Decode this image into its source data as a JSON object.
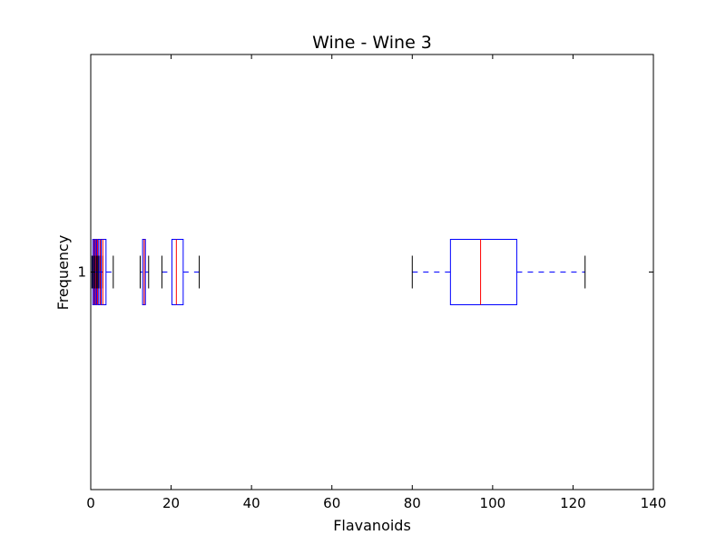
{
  "chart_data": {
    "type": "boxplot",
    "orientation": "horizontal",
    "title": "Wine - Wine 3",
    "xlabel": "Flavanoids",
    "ylabel": "Frequency",
    "xlim": [
      0,
      140
    ],
    "xticks": [
      0,
      20,
      40,
      60,
      80,
      100,
      120,
      140
    ],
    "yticks": [
      "1"
    ],
    "grid": false,
    "colors": {
      "box": "#0000ff",
      "median": "#ff0000",
      "whisker": "#0000ff",
      "cap": "#000000",
      "frame": "#000000"
    },
    "boxes": [
      {
        "min": 0.3,
        "q1": 0.5,
        "median": 0.75,
        "q3": 1.0,
        "max": 1.3
      },
      {
        "min": 0.6,
        "q1": 0.9,
        "median": 1.2,
        "q3": 1.5,
        "max": 1.8
      },
      {
        "min": 1.0,
        "q1": 1.4,
        "median": 1.7,
        "q3": 2.0,
        "max": 2.3
      },
      {
        "min": 1.5,
        "q1": 2.0,
        "median": 2.4,
        "q3": 2.6,
        "max": 3.0
      },
      {
        "min": 1.8,
        "q1": 2.6,
        "median": 3.0,
        "q3": 3.8,
        "max": 5.6
      },
      {
        "min": 12.3,
        "q1": 12.9,
        "median": 13.3,
        "q3": 13.6,
        "max": 14.4
      },
      {
        "min": 17.7,
        "q1": 20.2,
        "median": 21.3,
        "q3": 23.0,
        "max": 27.0
      },
      {
        "min": 80.0,
        "q1": 89.5,
        "median": 97.0,
        "q3": 106.0,
        "max": 123.0
      }
    ]
  }
}
